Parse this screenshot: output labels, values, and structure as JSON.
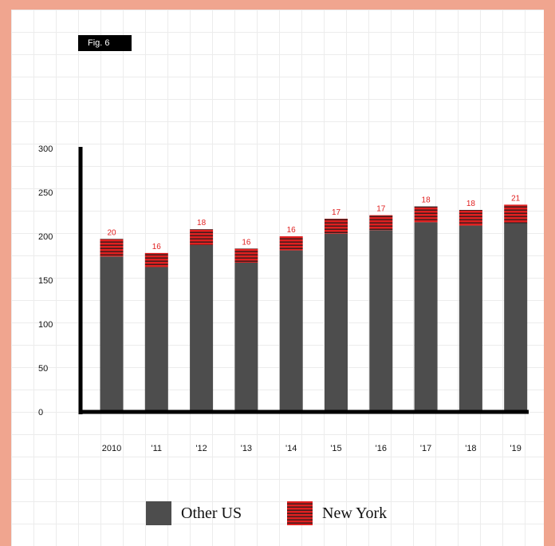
{
  "figure": {
    "label": "Fig. 6"
  },
  "chart_data": {
    "type": "bar",
    "stacked": true,
    "categories": [
      "2010",
      "'11",
      "'12",
      "'13",
      "'14",
      "'15",
      "'16",
      "'17",
      "'18",
      "'19"
    ],
    "series": [
      {
        "name": "Other US",
        "color": "#4d4d4d",
        "values": [
          177,
          165,
          190,
          170,
          184,
          203,
          207,
          216,
          212,
          215
        ]
      },
      {
        "name": "New York",
        "color": "#e02020",
        "values": [
          20,
          16,
          18,
          16,
          16,
          17,
          17,
          18,
          18,
          21
        ]
      }
    ],
    "yticks": [
      "0",
      "50",
      "100",
      "150",
      "200",
      "250",
      "300"
    ],
    "ylim": [
      0,
      300
    ],
    "data_labels": [
      "20",
      "16",
      "18",
      "16",
      "16",
      "17",
      "17",
      "18",
      "18",
      "21"
    ],
    "grid": true,
    "legend_position": "bottom"
  },
  "legend": {
    "items": [
      {
        "label": "Other US",
        "swatch": "solid"
      },
      {
        "label": "New York",
        "swatch": "striped"
      }
    ]
  },
  "colors": {
    "background": "#F0A58F",
    "other_us": "#4d4d4d",
    "new_york": "#e02020",
    "axis": "#000000"
  }
}
